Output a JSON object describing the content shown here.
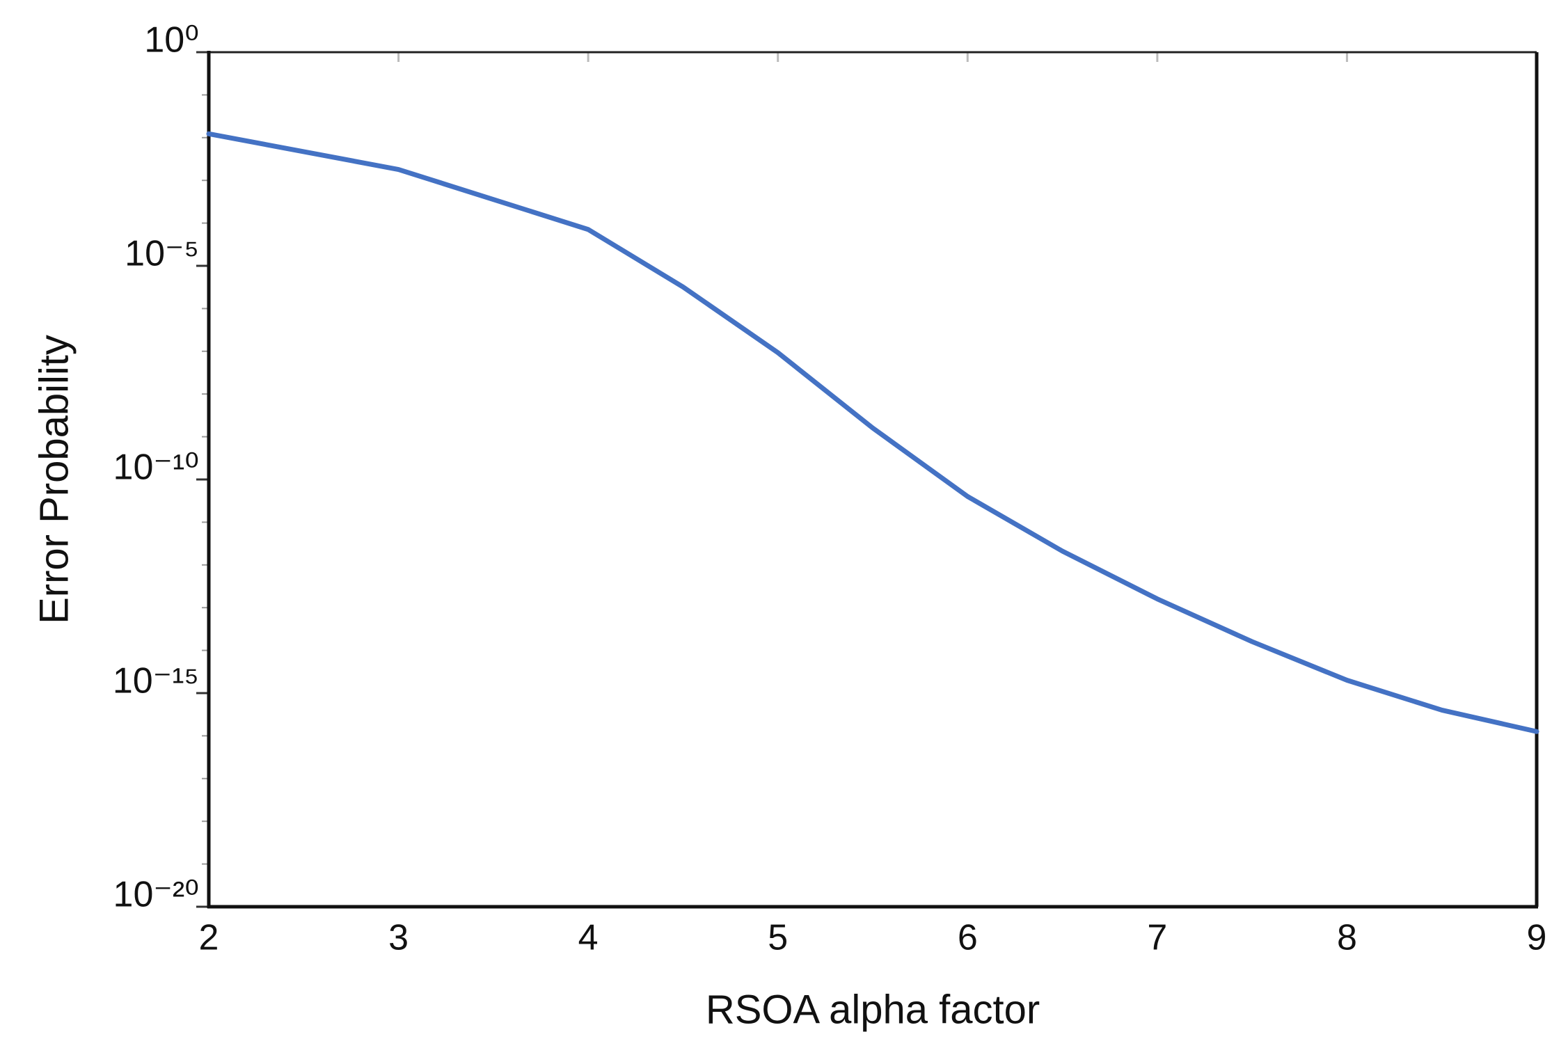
{
  "chart_data": {
    "type": "line",
    "xlabel": "RSOA alpha factor",
    "ylabel": "Error Probability",
    "log_y": true,
    "grid": false,
    "x": [
      2,
      3,
      4,
      4.5,
      5,
      5.5,
      6,
      6.5,
      7,
      7.5,
      8,
      8.5,
      9
    ],
    "series": [
      {
        "color": "#4472c4",
        "values": [
          0.0123,
          0.0018,
          7.1e-05,
          3.2e-06,
          9.3e-08,
          1.6e-09,
          4e-11,
          2.1e-12,
          1.6e-13,
          1.6e-14,
          2e-15,
          4e-16,
          1.26e-16
        ]
      }
    ],
    "xlim": [
      2,
      9
    ],
    "xticks": [
      2,
      3,
      4,
      5,
      6,
      7,
      8,
      9
    ],
    "ylim": [
      1e-20,
      1
    ],
    "yticks": [
      {
        "value": 1,
        "label": "10⁰"
      },
      {
        "value": 1e-05,
        "label": "10⁻⁵"
      },
      {
        "value": 1e-10,
        "label": "10⁻¹⁰"
      },
      {
        "value": 1e-15,
        "label": "10⁻¹⁵"
      },
      {
        "value": 1e-20,
        "label": "10⁻²⁰"
      }
    ],
    "yminorticks": [
      0.1,
      0.01,
      0.001,
      0.0001,
      1e-06,
      1e-07,
      1e-08,
      1e-09,
      1e-11,
      1e-12,
      1e-13,
      1e-14,
      1e-16,
      1e-17,
      1e-18,
      1e-19
    ]
  }
}
